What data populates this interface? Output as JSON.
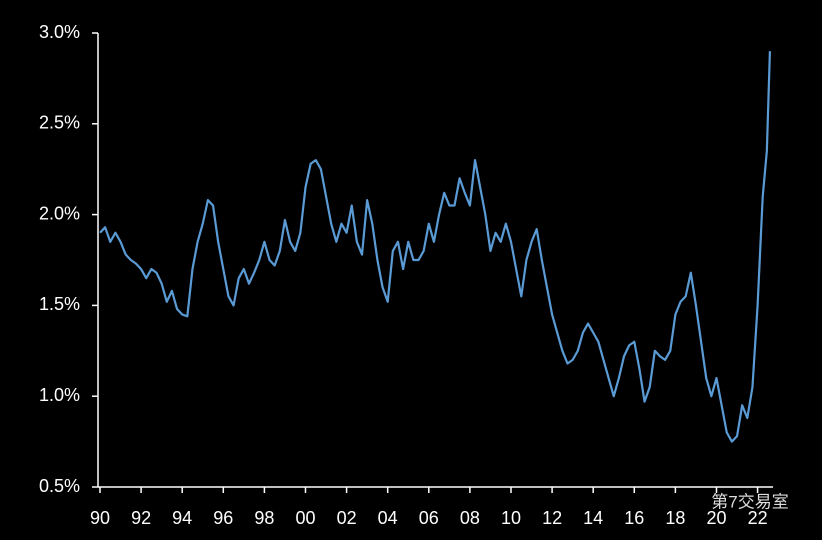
{
  "chart_data": {
    "type": "line",
    "watermark": "第7交易室",
    "x": [
      1990,
      1990.25,
      1990.5,
      1990.75,
      1991,
      1991.25,
      1991.5,
      1991.75,
      1992,
      1992.25,
      1992.5,
      1992.75,
      1993,
      1993.25,
      1993.5,
      1993.75,
      1994,
      1994.25,
      1994.5,
      1994.75,
      1995,
      1995.25,
      1995.5,
      1995.75,
      1996,
      1996.25,
      1996.5,
      1996.75,
      1997,
      1997.25,
      1997.5,
      1997.75,
      1998,
      1998.25,
      1998.5,
      1998.75,
      1999,
      1999.25,
      1999.5,
      1999.75,
      2000,
      2000.25,
      2000.5,
      2000.75,
      2001,
      2001.25,
      2001.5,
      2001.75,
      2002,
      2002.25,
      2002.5,
      2002.75,
      2003,
      2003.25,
      2003.5,
      2003.75,
      2004,
      2004.25,
      2004.5,
      2004.75,
      2005,
      2005.25,
      2005.5,
      2005.75,
      2006,
      2006.25,
      2006.5,
      2006.75,
      2007,
      2007.25,
      2007.5,
      2007.75,
      2008,
      2008.25,
      2008.5,
      2008.75,
      2009,
      2009.25,
      2009.5,
      2009.75,
      2010,
      2010.25,
      2010.5,
      2010.75,
      2011,
      2011.25,
      2011.5,
      2011.75,
      2012,
      2012.25,
      2012.5,
      2012.75,
      2013,
      2013.25,
      2013.5,
      2013.75,
      2014,
      2014.25,
      2014.5,
      2014.75,
      2015,
      2015.25,
      2015.5,
      2015.75,
      2016,
      2016.25,
      2016.5,
      2016.75,
      2017,
      2017.25,
      2017.5,
      2017.75,
      2018,
      2018.25,
      2018.5,
      2018.75,
      2019,
      2019.25,
      2019.5,
      2019.75,
      2020,
      2020.25,
      2020.5,
      2020.75,
      2021,
      2021.25,
      2021.5,
      2021.75,
      2022,
      2022.25,
      2022.45,
      2022.6
    ],
    "series": [
      {
        "color": "#5b9bd5",
        "values": [
          1.9,
          1.93,
          1.85,
          1.9,
          1.85,
          1.78,
          1.75,
          1.73,
          1.7,
          1.65,
          1.7,
          1.68,
          1.62,
          1.52,
          1.58,
          1.48,
          1.45,
          1.44,
          1.7,
          1.85,
          1.95,
          2.08,
          2.05,
          1.85,
          1.7,
          1.55,
          1.5,
          1.65,
          1.7,
          1.62,
          1.68,
          1.75,
          1.85,
          1.75,
          1.72,
          1.8,
          1.97,
          1.85,
          1.8,
          1.9,
          2.15,
          2.28,
          2.3,
          2.25,
          2.1,
          1.95,
          1.85,
          1.95,
          1.9,
          2.05,
          1.85,
          1.78,
          2.08,
          1.95,
          1.75,
          1.6,
          1.52,
          1.8,
          1.85,
          1.7,
          1.85,
          1.75,
          1.75,
          1.8,
          1.95,
          1.85,
          2.0,
          2.12,
          2.05,
          2.05,
          2.2,
          2.12,
          2.05,
          2.3,
          2.15,
          2.0,
          1.8,
          1.9,
          1.85,
          1.95,
          1.85,
          1.7,
          1.55,
          1.75,
          1.85,
          1.92,
          1.75,
          1.6,
          1.45,
          1.35,
          1.25,
          1.18,
          1.2,
          1.25,
          1.35,
          1.4,
          1.35,
          1.3,
          1.2,
          1.1,
          1.0,
          1.1,
          1.22,
          1.28,
          1.3,
          1.15,
          0.97,
          1.05,
          1.25,
          1.22,
          1.2,
          1.25,
          1.45,
          1.52,
          1.55,
          1.68,
          1.5,
          1.3,
          1.1,
          1.0,
          1.1,
          0.95,
          0.8,
          0.75,
          0.78,
          0.95,
          0.88,
          1.05,
          1.5,
          2.1,
          2.35,
          2.9
        ]
      }
    ],
    "xlim": [
      1990,
      2022.75
    ],
    "xticks": [
      {
        "value": 1990,
        "label": "90"
      },
      {
        "value": 1992,
        "label": "92"
      },
      {
        "value": 1994,
        "label": "94"
      },
      {
        "value": 1996,
        "label": "96"
      },
      {
        "value": 1998,
        "label": "98"
      },
      {
        "value": 2000,
        "label": "00"
      },
      {
        "value": 2002,
        "label": "02"
      },
      {
        "value": 2004,
        "label": "04"
      },
      {
        "value": 2006,
        "label": "06"
      },
      {
        "value": 2008,
        "label": "08"
      },
      {
        "value": 2010,
        "label": "10"
      },
      {
        "value": 2012,
        "label": "12"
      },
      {
        "value": 2014,
        "label": "14"
      },
      {
        "value": 2016,
        "label": "16"
      },
      {
        "value": 2018,
        "label": "18"
      },
      {
        "value": 2020,
        "label": "20"
      },
      {
        "value": 2022,
        "label": "22"
      }
    ],
    "ylim": [
      0.5,
      3.0
    ],
    "yticks": [
      {
        "value": 0.5,
        "label": "0.5%"
      },
      {
        "value": 1.0,
        "label": "1.0%"
      },
      {
        "value": 1.5,
        "label": "1.5%"
      },
      {
        "value": 2.0,
        "label": "2.0%"
      },
      {
        "value": 2.5,
        "label": "2.5%"
      },
      {
        "value": 3.0,
        "label": "3.0%"
      }
    ]
  }
}
